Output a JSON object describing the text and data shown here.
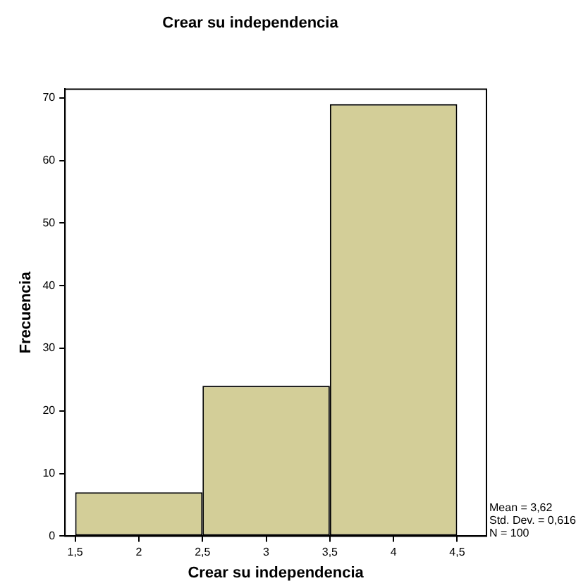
{
  "chart_data": {
    "type": "histogram",
    "title": "Crear su independencia",
    "xlabel": "Crear su independencia",
    "ylabel": "Frecuencia",
    "bins": [
      1.5,
      2.5,
      3.5,
      4.5
    ],
    "values": [
      7,
      24,
      69
    ],
    "color": "#d3ce98",
    "xlim": [
      1.42,
      4.73
    ],
    "xticks": [
      {
        "value": 1.5,
        "label": "1,5"
      },
      2,
      {
        "value": 2.5,
        "label": "2,5"
      },
      3,
      {
        "value": 3.5,
        "label": "3,5"
      },
      4,
      {
        "value": 4.5,
        "label": "4,5"
      }
    ],
    "ylim": [
      0,
      71.4
    ],
    "yticks": [
      0,
      10,
      20,
      30,
      40,
      50,
      60,
      70
    ],
    "grid": false,
    "legend": false,
    "annotations": [
      "Mean = 3,62",
      "Std. Dev. = 0,616",
      "N = 100"
    ]
  }
}
